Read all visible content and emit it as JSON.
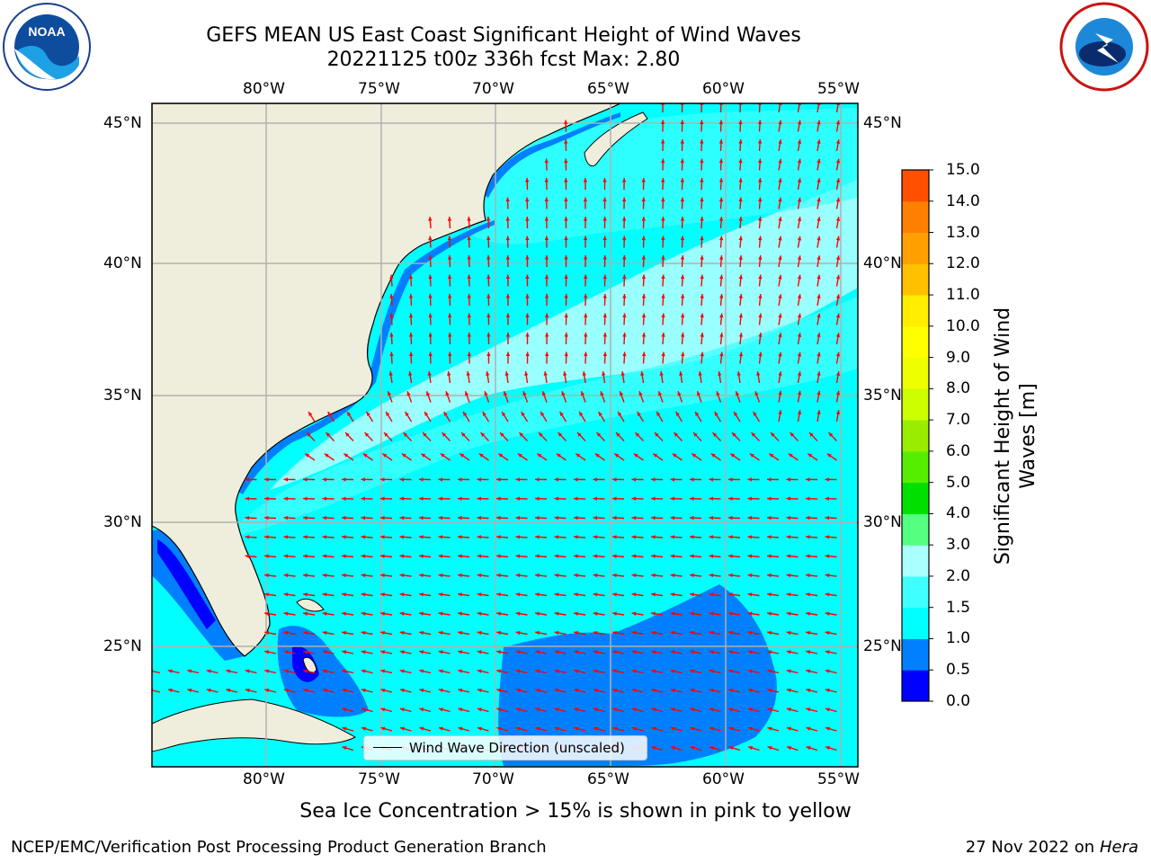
{
  "header": {
    "title_line1": "GEFS MEAN US East Coast Significant Height of Wind Waves",
    "title_line2": "20221125 t00z 336h fcst   Max: 2.80"
  },
  "map": {
    "lon_labels": [
      "80°W",
      "75°W",
      "70°W",
      "65°W",
      "60°W",
      "55°W"
    ],
    "lat_labels": [
      "45°N",
      "40°N",
      "35°N",
      "30°N",
      "25°N"
    ],
    "ocean_colors": {
      "level_0_5_1": "#0080ff",
      "level_1_1_5": "#00ffff",
      "level_1_5_2": "#40ffff",
      "level_2_3": "#aaffff"
    },
    "land_color": "#efeedc",
    "arrow_color": "#ff0000",
    "grid_color": "#b0b0b0"
  },
  "legend": {
    "label": "Wind Wave Direction (unscaled)"
  },
  "colorbar": {
    "label": "Significant Height of Wind Waves [m]",
    "ticks": [
      "15.0",
      "14.0",
      "13.0",
      "12.0",
      "11.0",
      "10.0",
      "9.0",
      "8.0",
      "7.0",
      "6.0",
      "5.0",
      "4.0",
      "3.0",
      "2.0",
      "1.5",
      "1.0",
      "0.5",
      "0.0"
    ],
    "colors": [
      "#0000ff",
      "#0080ff",
      "#00ffff",
      "#40ffff",
      "#aaffff",
      "#55ff80",
      "#00e000",
      "#55ee00",
      "#99ee00",
      "#ccff00",
      "#eeff00",
      "#ffff00",
      "#ffee00",
      "#ffc000",
      "#ffa000",
      "#ff8000",
      "#ff5000",
      "#ff2000",
      "#ff0000"
    ]
  },
  "footer": {
    "note": "Sea Ice Concentration > 15% is shown in pink to yellow",
    "credit": "NCEP/EMC/Verification Post Processing Product Generation Branch",
    "date": "27 Nov 2022 on",
    "host": "Hera"
  }
}
